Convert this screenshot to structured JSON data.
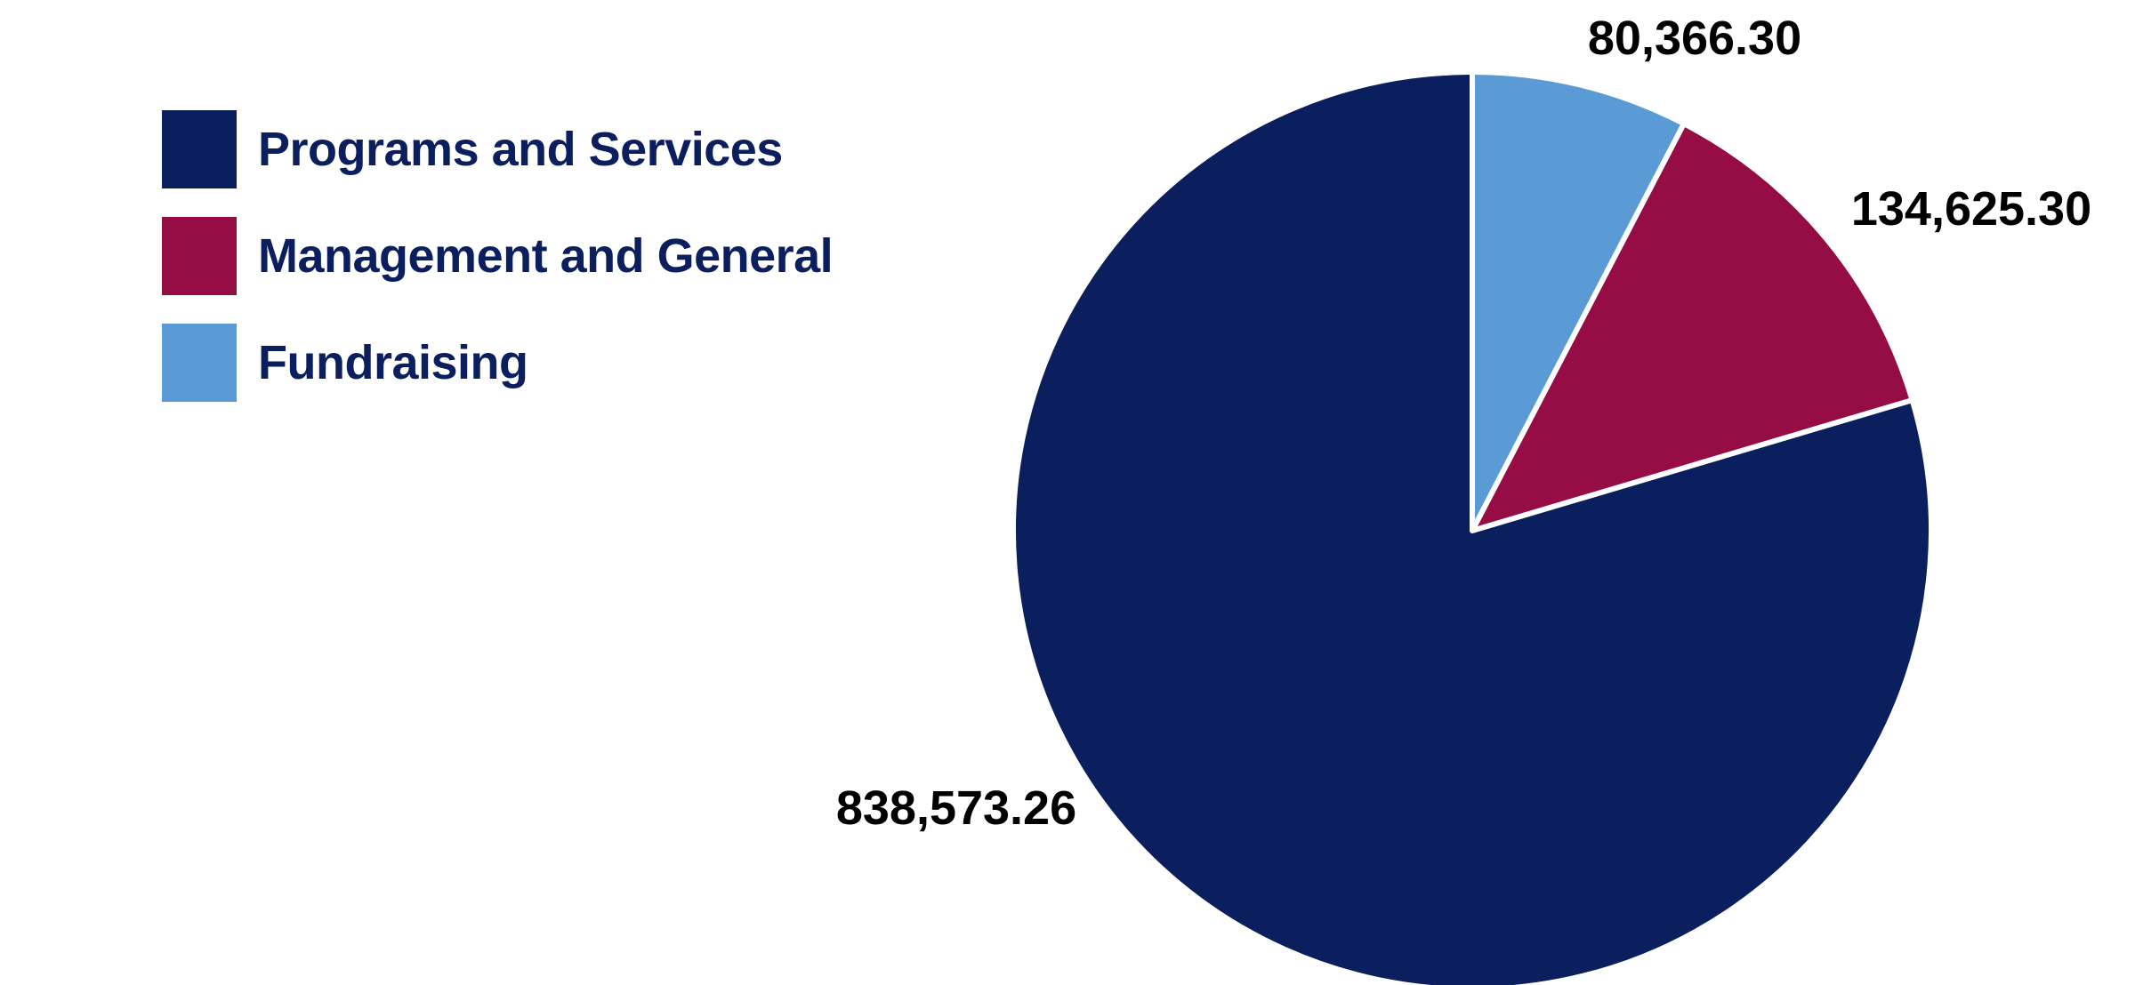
{
  "chart_data": {
    "type": "pie",
    "title": "",
    "legend_position": "top-left",
    "start_angle": "12 o'clock",
    "direction": "clockwise",
    "slices": [
      {
        "label": "Fundraising",
        "value": 80366.3,
        "display": "80,366.30",
        "color": "#5b9bd5"
      },
      {
        "label": "Management and General",
        "value": 134625.3,
        "display": "134,625.30",
        "color": "#960c45"
      },
      {
        "label": "Programs and Services",
        "value": 838573.26,
        "display": "838,573.26",
        "color": "#0b1f5e"
      }
    ],
    "legend": [
      {
        "label": "Programs and Services",
        "color": "#0b1f5e"
      },
      {
        "label": "Management and General",
        "color": "#960c45"
      },
      {
        "label": "Fundraising",
        "color": "#5b9bd5"
      }
    ]
  }
}
